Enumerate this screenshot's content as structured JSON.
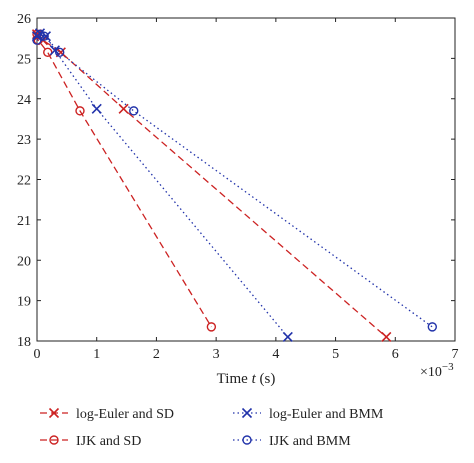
{
  "chart_data": {
    "type": "line",
    "xlabel_prefix": "Time ",
    "xlabel_var": "t",
    "xlabel_suffix": " (s)",
    "ylabel": "",
    "x_multiplier": "×10",
    "x_multiplier_exp": "−3",
    "xlim": [
      0,
      7
    ],
    "ylim": [
      18,
      26
    ],
    "xticks": [
      0,
      1,
      2,
      3,
      4,
      5,
      6,
      7
    ],
    "yticks": [
      18,
      19,
      20,
      21,
      22,
      23,
      24,
      25,
      26
    ],
    "grid": false,
    "legend_position": "bottom",
    "series": [
      {
        "name": "log-Euler and SD",
        "color": "#cc2222",
        "line": "dashed",
        "marker": "x",
        "x": [
          0.0,
          0.02,
          0.1,
          0.4,
          1.45,
          5.85
        ],
        "y": [
          25.6,
          25.55,
          25.45,
          25.15,
          23.75,
          18.1
        ]
      },
      {
        "name": "IJK and SD",
        "color": "#cc2222",
        "line": "dashed",
        "marker": "o",
        "x": [
          0.0,
          0.02,
          0.18,
          0.72,
          2.92
        ],
        "y": [
          25.6,
          25.45,
          25.15,
          23.7,
          18.35
        ]
      },
      {
        "name": "log-Euler and BMM",
        "color": "#2233aa",
        "line": "dotted",
        "marker": "x",
        "x": [
          0.0,
          0.05,
          0.15,
          0.3,
          1.0,
          4.2
        ],
        "y": [
          25.55,
          25.62,
          25.55,
          25.2,
          23.75,
          18.1
        ]
      },
      {
        "name": "IJK and BMM",
        "color": "#2233aa",
        "line": "dotted",
        "marker": "o",
        "x": [
          0.0,
          0.05,
          0.12,
          0.38,
          1.62,
          6.62
        ],
        "y": [
          25.45,
          25.6,
          25.55,
          25.15,
          23.7,
          18.35
        ]
      }
    ]
  }
}
